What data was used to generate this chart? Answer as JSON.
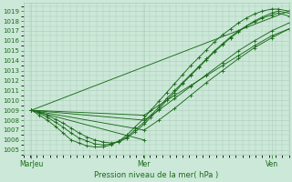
{
  "xlabel": "Pression niveau de la mer( hPa )",
  "bg_color": "#cce8d8",
  "grid_color": "#aaccb8",
  "line_color": "#1a6b1a",
  "ylim": [
    1004.5,
    1019.8
  ],
  "yticks": [
    1005,
    1006,
    1007,
    1008,
    1009,
    1010,
    1011,
    1012,
    1013,
    1014,
    1015,
    1016,
    1017,
    1018,
    1019
  ],
  "xtick_labels": [
    "MarJeu",
    "Mer",
    "Ven"
  ],
  "xtick_positions": [
    0.03,
    0.455,
    0.935
  ],
  "xlim": [
    0.0,
    1.0
  ],
  "lines": [
    {
      "x": [
        0.03,
        0.06,
        0.09,
        0.12,
        0.15,
        0.18,
        0.21,
        0.24,
        0.27,
        0.3,
        0.33,
        0.36,
        0.39,
        0.42,
        0.455,
        0.48,
        0.51,
        0.54,
        0.57,
        0.6,
        0.63,
        0.66,
        0.69,
        0.72,
        0.75,
        0.78,
        0.81,
        0.84,
        0.87,
        0.9,
        0.935,
        0.96,
        1.0
      ],
      "y": [
        1009.0,
        1008.7,
        1008.3,
        1007.8,
        1007.3,
        1006.7,
        1006.2,
        1005.9,
        1005.6,
        1005.5,
        1005.6,
        1005.9,
        1006.3,
        1007.0,
        1007.8,
        1008.5,
        1009.3,
        1010.2,
        1011.0,
        1011.8,
        1012.6,
        1013.4,
        1014.2,
        1015.0,
        1015.7,
        1016.4,
        1017.0,
        1017.5,
        1017.9,
        1018.3,
        1018.6,
        1018.8,
        1018.5
      ]
    },
    {
      "x": [
        0.03,
        0.06,
        0.09,
        0.12,
        0.15,
        0.18,
        0.21,
        0.24,
        0.27,
        0.3,
        0.33,
        0.36,
        0.39,
        0.42,
        0.455,
        0.48,
        0.51,
        0.54,
        0.57,
        0.6,
        0.63,
        0.66,
        0.69,
        0.72,
        0.75,
        0.78,
        0.81,
        0.84,
        0.87,
        0.9,
        0.935,
        0.96,
        1.0
      ],
      "y": [
        1009.0,
        1008.5,
        1008.0,
        1007.4,
        1006.7,
        1006.0,
        1005.7,
        1005.4,
        1005.3,
        1005.3,
        1005.5,
        1005.9,
        1006.5,
        1007.3,
        1008.2,
        1009.0,
        1009.9,
        1010.8,
        1011.7,
        1012.6,
        1013.5,
        1014.3,
        1015.1,
        1015.9,
        1016.6,
        1017.2,
        1017.8,
        1018.3,
        1018.7,
        1019.0,
        1019.2,
        1019.2,
        1019.0
      ]
    },
    {
      "x": [
        0.03,
        0.06,
        0.09,
        0.12,
        0.15,
        0.18,
        0.21,
        0.24,
        0.27,
        0.3,
        0.33,
        0.36,
        0.39,
        0.42,
        0.455,
        0.48,
        0.51,
        0.54,
        0.57,
        0.6,
        0.63,
        0.66,
        0.69,
        0.72,
        0.75,
        0.78,
        0.81,
        0.84,
        0.87,
        0.9,
        0.935,
        0.96,
        1.0
      ],
      "y": [
        1009.0,
        1008.8,
        1008.5,
        1008.1,
        1007.7,
        1007.2,
        1006.7,
        1006.3,
        1006.0,
        1005.8,
        1005.7,
        1005.8,
        1006.2,
        1006.8,
        1007.6,
        1008.3,
        1009.1,
        1010.0,
        1010.8,
        1011.7,
        1012.5,
        1013.3,
        1014.1,
        1014.9,
        1015.6,
        1016.3,
        1016.9,
        1017.5,
        1018.0,
        1018.4,
        1018.8,
        1019.0,
        1018.8
      ]
    },
    {
      "x": [
        0.03,
        0.455,
        0.51,
        0.57,
        0.63,
        0.69,
        0.75,
        0.81,
        0.87,
        0.935,
        1.0
      ],
      "y": [
        1009.0,
        1008.5,
        1009.5,
        1010.5,
        1011.5,
        1012.5,
        1013.5,
        1014.5,
        1015.5,
        1016.5,
        1017.2
      ]
    },
    {
      "x": [
        0.03,
        0.455,
        0.51,
        0.57,
        0.63,
        0.69,
        0.75,
        0.81,
        0.87,
        0.935,
        1.0
      ],
      "y": [
        1009.0,
        1007.0,
        1008.0,
        1009.2,
        1010.5,
        1011.8,
        1013.0,
        1014.2,
        1015.3,
        1016.3,
        1017.2
      ]
    },
    {
      "x": [
        0.03,
        0.455,
        0.51,
        0.57,
        0.63,
        0.69,
        0.75,
        0.81,
        0.87,
        0.935,
        1.0
      ],
      "y": [
        1009.0,
        1008.0,
        1009.0,
        1010.2,
        1011.4,
        1012.6,
        1013.8,
        1015.0,
        1016.0,
        1017.0,
        1017.8
      ]
    },
    {
      "x": [
        0.03,
        1.0
      ],
      "y": [
        1009.0,
        1019.0
      ]
    },
    {
      "x": [
        0.03,
        0.455
      ],
      "y": [
        1009.0,
        1006.0
      ]
    }
  ]
}
